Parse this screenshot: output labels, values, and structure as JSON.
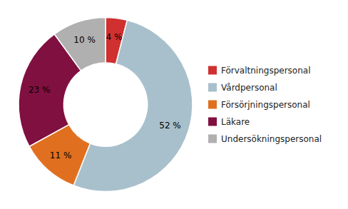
{
  "chart_data": {
    "type": "donut",
    "categories": [
      "Förvaltningspersonal",
      "Vårdpersonal",
      "Försörjningspersonal",
      "Läkare",
      "Undersökningspersonal"
    ],
    "values": [
      4,
      52,
      11,
      23,
      10
    ],
    "value_labels": [
      "4 %",
      "52 %",
      "11 %",
      "23 %",
      "10 %"
    ],
    "colors": [
      "#d03030",
      "#a8c0cc",
      "#e07020",
      "#801040",
      "#b0b0b0"
    ],
    "data_labels": true,
    "legend": "right"
  }
}
